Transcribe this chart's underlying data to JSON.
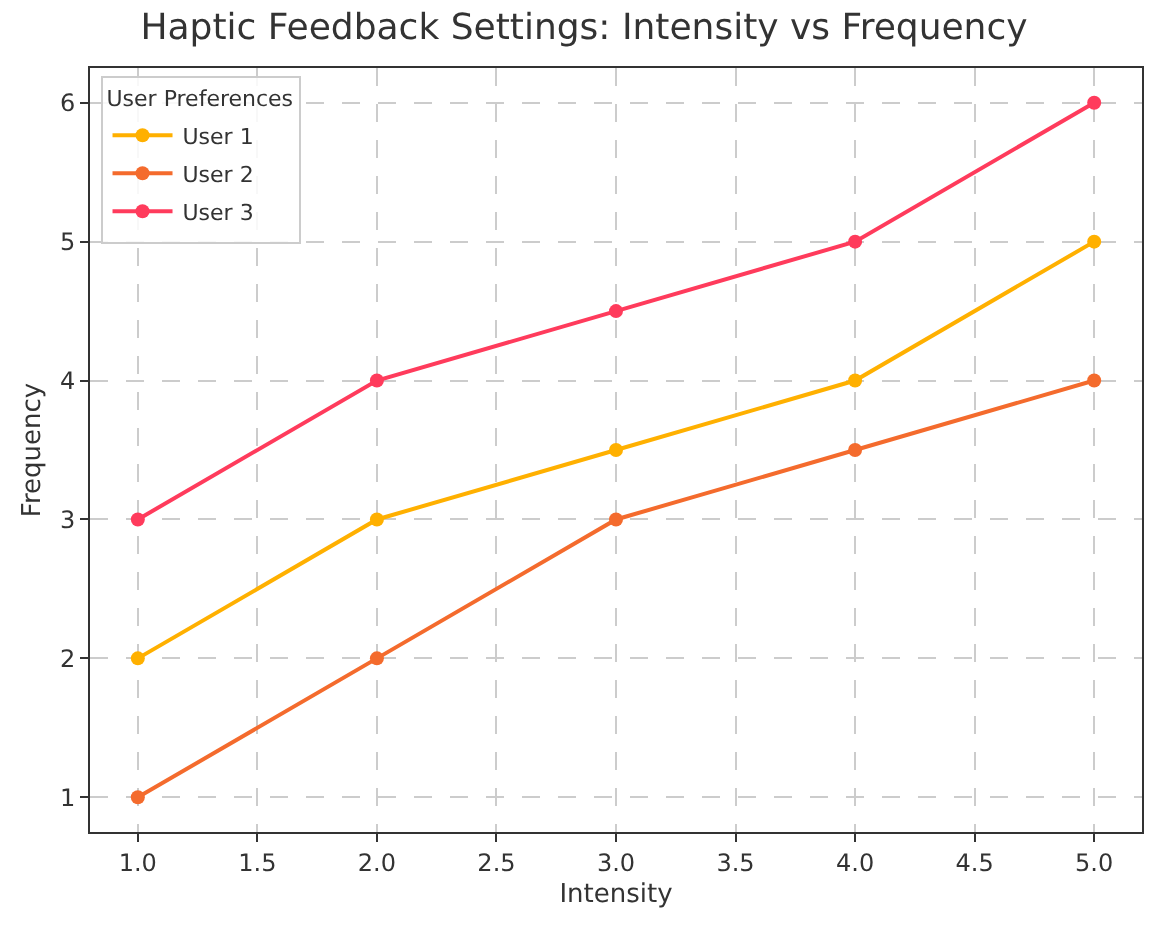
{
  "chart_data": {
    "type": "line",
    "title": "Haptic Feedback Settings: Intensity vs Frequency",
    "xlabel": "Intensity",
    "ylabel": "Frequency",
    "legend_title": "User Preferences",
    "x": [
      1,
      2,
      3,
      4,
      5
    ],
    "series": [
      {
        "name": "User 1",
        "color": "#ffb000",
        "values": [
          2,
          3,
          3.5,
          4,
          5
        ]
      },
      {
        "name": "User 2",
        "color": "#f46b2d",
        "values": [
          1,
          2,
          3,
          3.5,
          4
        ]
      },
      {
        "name": "User 3",
        "color": "#ff3b5c",
        "values": [
          3,
          4,
          4.5,
          5,
          6
        ]
      }
    ],
    "xlim": [
      0.8,
      5.2
    ],
    "xticks": [
      {
        "value": 1,
        "label": "1.0"
      },
      {
        "value": 1.5,
        "label": "1.5"
      },
      {
        "value": 2,
        "label": "2.0"
      },
      {
        "value": 2.5,
        "label": "2.5"
      },
      {
        "value": 3,
        "label": "3.0"
      },
      {
        "value": 3.5,
        "label": "3.5"
      },
      {
        "value": 4,
        "label": "4.0"
      },
      {
        "value": 4.5,
        "label": "4.5"
      },
      {
        "value": 5,
        "label": "5.0"
      }
    ],
    "ylim": [
      0.75,
      6.25
    ],
    "yticks": [
      1,
      2,
      3,
      4,
      5,
      6
    ],
    "grid": true,
    "legend": "top left",
    "marker": "circle",
    "line_style": "solid"
  }
}
